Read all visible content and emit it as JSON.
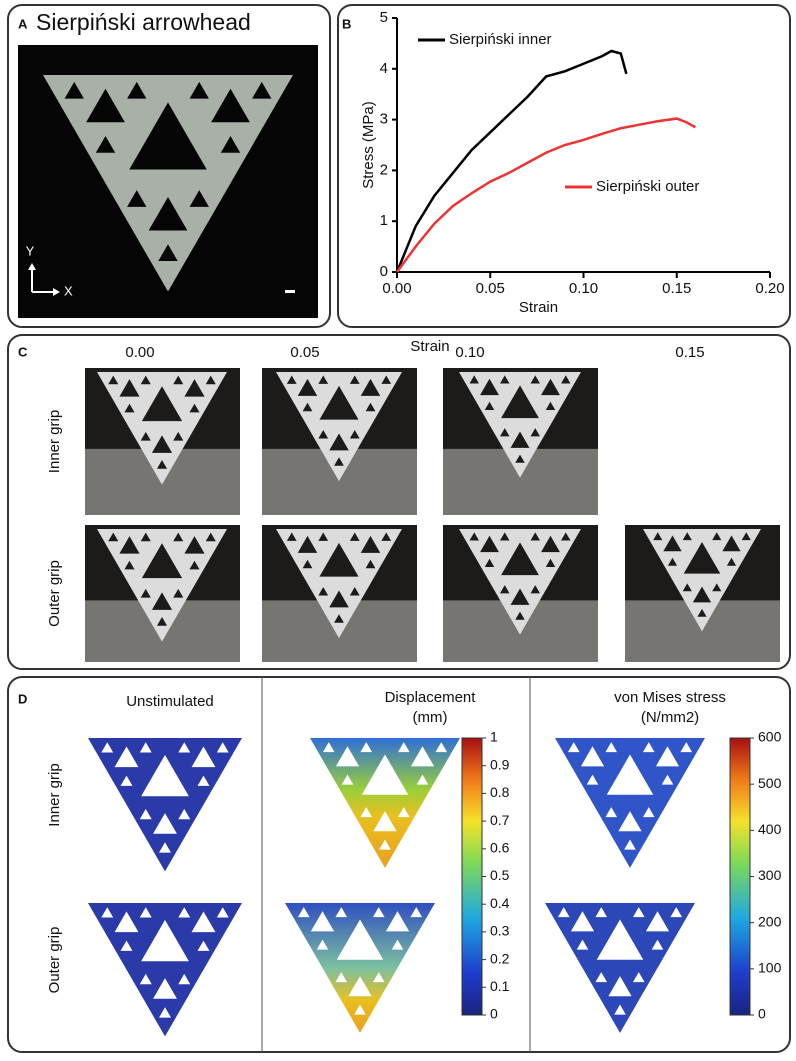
{
  "panels": {
    "a": {
      "label": "A",
      "title": "Sierpiński arrowhead",
      "axis_y": "Y",
      "axis_x": "X"
    },
    "b": {
      "label": "B"
    },
    "c": {
      "label": "C",
      "strain_title": "Strain",
      "strains": [
        "0.00",
        "0.05",
        "0.10",
        "0.15"
      ],
      "rows": [
        "Inner grip",
        "Outer grip"
      ]
    },
    "d": {
      "label": "D",
      "columns": [
        [
          "Unstimulated"
        ],
        [
          "Displacement",
          "(mm)"
        ],
        [
          "von Mises stress",
          "(N/mm2)"
        ]
      ],
      "rows": [
        "Inner grip",
        "Outer grip"
      ],
      "displacement_scale": {
        "lim": [
          0,
          1
        ],
        "ticks": [
          0,
          0.1,
          0.2,
          0.3,
          0.4,
          0.5,
          0.6,
          0.7,
          0.8,
          0.9,
          1
        ]
      },
      "stress_scale": {
        "lim": [
          0,
          600
        ],
        "ticks": [
          0,
          100,
          200,
          300,
          400,
          500,
          600
        ]
      }
    }
  },
  "chart_data": {
    "type": "line",
    "xlabel": "Strain",
    "ylabel": "Stress (MPa)",
    "xlim": [
      0,
      0.2
    ],
    "ylim": [
      0,
      5
    ],
    "xticks": [
      {
        "value": 0,
        "label": "0.00"
      },
      {
        "value": 0.05,
        "label": "0.05"
      },
      {
        "value": 0.1,
        "label": "0.10"
      },
      {
        "value": 0.15,
        "label": "0.15"
      },
      {
        "value": 0.2,
        "label": "0.20"
      }
    ],
    "yticks": [
      0,
      1,
      2,
      3,
      4,
      5
    ],
    "series": [
      {
        "name": "Sierpiński inner",
        "color": "#000000",
        "x": [
          0,
          0.01,
          0.02,
          0.03,
          0.04,
          0.05,
          0.06,
          0.07,
          0.08,
          0.09,
          0.1,
          0.11,
          0.115,
          0.12,
          0.123
        ],
        "values": [
          0,
          0.9,
          1.5,
          1.95,
          2.4,
          2.75,
          3.1,
          3.45,
          3.85,
          3.95,
          4.1,
          4.25,
          4.35,
          4.3,
          3.9
        ]
      },
      {
        "name": "Sierpiński outer",
        "color": "#ee3333",
        "x": [
          0,
          0.01,
          0.02,
          0.03,
          0.04,
          0.05,
          0.06,
          0.07,
          0.08,
          0.09,
          0.1,
          0.11,
          0.12,
          0.13,
          0.14,
          0.15,
          0.155,
          0.16
        ],
        "values": [
          0,
          0.5,
          0.95,
          1.3,
          1.55,
          1.78,
          1.95,
          2.15,
          2.35,
          2.5,
          2.6,
          2.72,
          2.83,
          2.9,
          2.97,
          3.02,
          2.95,
          2.85
        ]
      }
    ]
  }
}
